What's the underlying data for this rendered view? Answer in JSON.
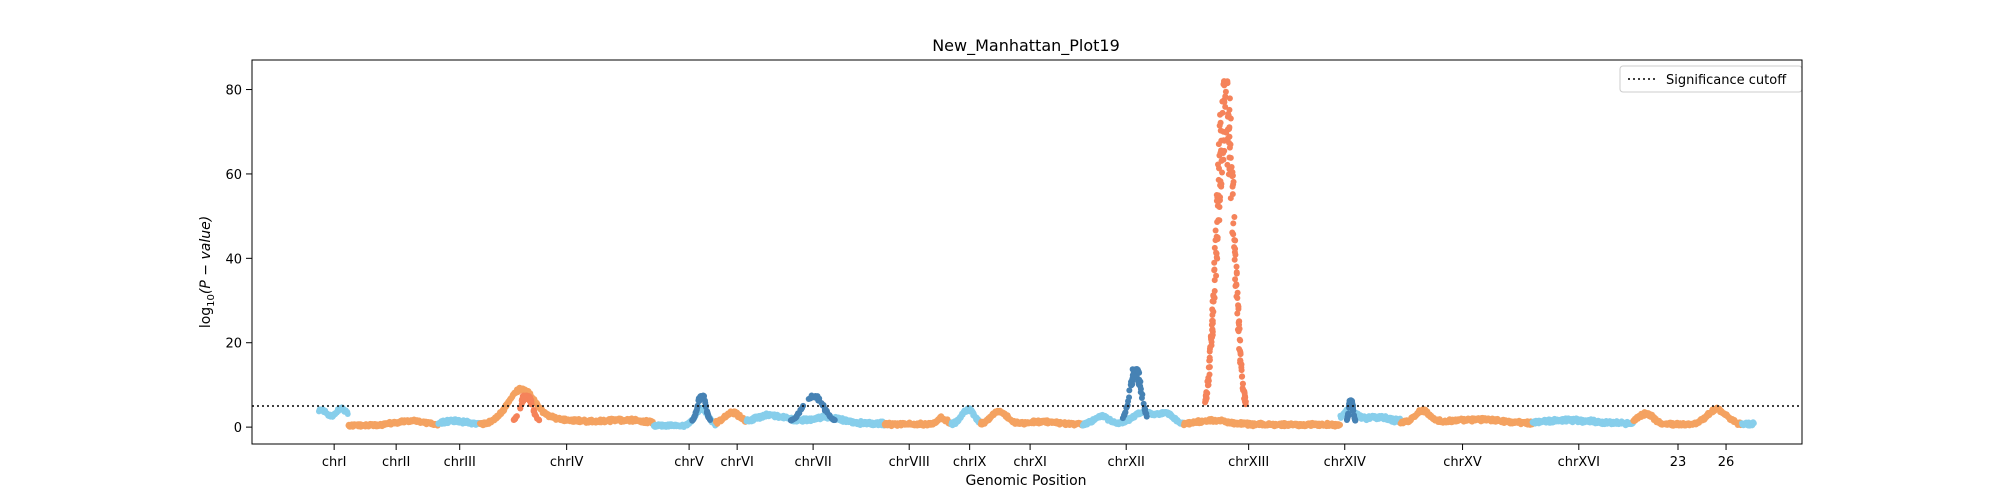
{
  "chart_data": {
    "type": "scatter",
    "title": "New_Manhattan_Plot19",
    "xlabel": "Genomic Position",
    "ylabel_main": "log",
    "ylabel_sub": "10",
    "ylabel_rest": "(P − value)",
    "ylim": [
      -4,
      87
    ],
    "yticks": [
      0,
      20,
      40,
      60,
      80
    ],
    "xlim": [
      0,
      100
    ],
    "significance_cutoff": 5,
    "legend": {
      "label": "Significance cutoff",
      "placement": "upper right"
    },
    "colors": {
      "light_blue": "#87CEEB",
      "orange": "#F4A261",
      "dark_blue": "#4682B4",
      "coral": "#F5835A"
    },
    "chromosomes": [
      {
        "name": "chrI",
        "tick": 5.3,
        "start": 4.3,
        "end": 6.2,
        "color": "light_blue",
        "base": 1.0,
        "peaks": [
          [
            4.5,
            3.2,
            0.4
          ],
          [
            5.8,
            3.5,
            0.4
          ]
        ]
      },
      {
        "name": "chrII",
        "tick": 9.3,
        "start": 6.2,
        "end": 12.0,
        "color": "orange",
        "base": 0.5,
        "peaks": [
          [
            10.2,
            1.0,
            1.0
          ]
        ]
      },
      {
        "name": "chrIII",
        "tick": 13.4,
        "start": 12.0,
        "end": 14.7,
        "color": "light_blue",
        "base": 0.8,
        "peaks": [
          [
            13.0,
            0.8,
            0.8
          ]
        ]
      },
      {
        "name": "chrIV",
        "tick": 20.3,
        "start": 14.7,
        "end": 25.9,
        "color": "orange",
        "base": 0.8,
        "peaks": [
          [
            16.8,
            2.0,
            0.8
          ],
          [
            17.5,
            6.5,
            0.8
          ],
          [
            19.5,
            1.2,
            1.5
          ],
          [
            24.0,
            1.0,
            1.5
          ]
        ]
      },
      {
        "name": "chrV",
        "tick": 28.2,
        "start": 25.9,
        "end": 29.9,
        "color": "light_blue",
        "base": 0.4,
        "peaks": [
          [
            29.0,
            4.0,
            0.4
          ]
        ]
      },
      {
        "name": "chrVI",
        "tick": 31.3,
        "start": 29.9,
        "end": 31.9,
        "color": "orange",
        "base": 1.0,
        "peaks": [
          [
            31.0,
            2.5,
            0.5
          ]
        ]
      },
      {
        "name": "chrVII",
        "tick": 36.2,
        "start": 31.9,
        "end": 40.8,
        "color": "light_blue",
        "base": 1.0,
        "peaks": [
          [
            33.5,
            2.0,
            1.0
          ],
          [
            37.0,
            1.5,
            1.0
          ]
        ]
      },
      {
        "name": "chrVIII",
        "tick": 42.4,
        "start": 40.8,
        "end": 45.1,
        "color": "orange",
        "base": 0.8,
        "peaks": [
          [
            44.5,
            1.5,
            0.3
          ]
        ]
      },
      {
        "name": "chrIX",
        "tick": 46.3,
        "start": 45.1,
        "end": 47.0,
        "color": "light_blue",
        "base": 0.8,
        "peaks": [
          [
            46.2,
            3.5,
            0.4
          ]
        ]
      },
      {
        "name": "chrXI",
        "tick": 50.2,
        "start": 47.0,
        "end": 53.6,
        "color": "orange",
        "base": 0.8,
        "peaks": [
          [
            48.2,
            3.0,
            0.5
          ],
          [
            51.0,
            0.6,
            1.0
          ]
        ]
      },
      {
        "name": "chrXII",
        "tick": 56.4,
        "start": 53.6,
        "end": 60.1,
        "color": "light_blue",
        "base": 0.6,
        "peaks": [
          [
            54.8,
            2.0,
            0.5
          ],
          [
            57.5,
            3.0,
            0.7
          ],
          [
            59.0,
            2.5,
            0.5
          ]
        ]
      },
      {
        "name": "chrXIII",
        "tick": 64.3,
        "start": 60.1,
        "end": 70.2,
        "color": "orange",
        "base": 0.7,
        "peaks": [
          [
            62.0,
            1.0,
            1.0
          ]
        ]
      },
      {
        "name": "chrXIV",
        "tick": 70.5,
        "start": 70.2,
        "end": 74.1,
        "color": "light_blue",
        "base": 1.5,
        "peaks": [
          [
            70.8,
            2.5,
            0.4
          ],
          [
            72.5,
            1.2,
            0.8
          ]
        ]
      },
      {
        "name": "chrXV",
        "tick": 78.1,
        "start": 74.1,
        "end": 82.6,
        "color": "orange",
        "base": 1.0,
        "peaks": [
          [
            75.5,
            3.0,
            0.5
          ],
          [
            79.0,
            1.0,
            1.5
          ]
        ]
      },
      {
        "name": "chrXVI",
        "tick": 85.6,
        "start": 82.6,
        "end": 89.1,
        "color": "light_blue",
        "base": 1.0,
        "peaks": [
          [
            85.0,
            0.8,
            1.5
          ]
        ]
      },
      {
        "name": "23",
        "tick": 92.0,
        "start": 89.1,
        "end": 96.1,
        "color": "orange",
        "base": 0.8,
        "peaks": [
          [
            89.9,
            2.5,
            0.5
          ],
          [
            94.5,
            3.5,
            0.6
          ]
        ]
      },
      {
        "name": "26",
        "tick": 95.1,
        "start": 96.1,
        "end": 96.9,
        "color": "light_blue",
        "base": 0.8,
        "peaks": []
      }
    ],
    "qtl_peaks": [
      {
        "chrom": "chrIV",
        "center": 17.7,
        "height": 7.5,
        "width": 0.35,
        "color": "coral"
      },
      {
        "chrom": "chrV",
        "center": 29.0,
        "height": 7.5,
        "width": 0.25,
        "color": "dark_blue"
      },
      {
        "chrom": "chrVII",
        "center": 36.2,
        "height": 7.5,
        "width": 0.6,
        "color": "dark_blue"
      },
      {
        "chrom": "chrXII",
        "center": 57.0,
        "height": 14.0,
        "width": 0.35,
        "color": "dark_blue"
      },
      {
        "chrom": "chrXIII",
        "center": 62.8,
        "height": 82.0,
        "width": 0.55,
        "color": "coral"
      },
      {
        "chrom": "chrXIV",
        "center": 70.9,
        "height": 6.5,
        "width": 0.12,
        "color": "dark_blue"
      }
    ]
  }
}
